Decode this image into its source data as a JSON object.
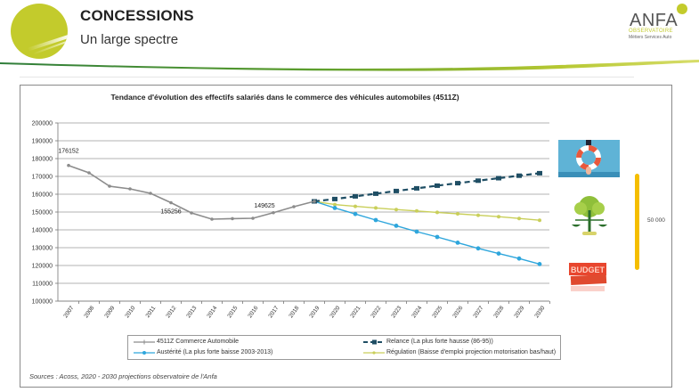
{
  "header": {
    "title": "CONCESSIONS",
    "subtitle": "Un large spectre",
    "brand": "ANFA",
    "brand_line1": "OBSERVATOIRE",
    "brand_line2": "Métiers Services Auto"
  },
  "colors": {
    "accent_green": "#c3cb2c",
    "history": "#8c8c8c",
    "relance": "#1f4e64",
    "austerite": "#2ea6dc",
    "regulation": "#c9cf5a",
    "gold_bar": "#f5be00"
  },
  "side_panel": {
    "range_label": "50 000",
    "icons": [
      "lifebuoy-icon",
      "scales-tree-icon",
      "budget-cut-icon"
    ]
  },
  "legend": {
    "items": [
      {
        "key": "history",
        "label": "4511Z Commerce Automobile"
      },
      {
        "key": "relance",
        "label": "Relance (La plus forte hausse (86-95))"
      },
      {
        "key": "austerite",
        "label": "Austérité (La plus forte baisse 2003-2013)"
      },
      {
        "key": "regulation",
        "label": "Régulation (Baisse d'emploi projection motorisation bas/haut)"
      }
    ]
  },
  "source": "Sources : Acoss,  2020 - 2030 projections observatoire de l'Anfa",
  "chart_data": {
    "type": "line",
    "title": "Tendance d'évolution des effectifs salariés dans le commerce des véhicules automobiles (4511Z)",
    "xlabel": "",
    "ylabel": "",
    "ylim": [
      100000,
      200000
    ],
    "yticks": [
      "200000",
      "190000",
      "180000",
      "170000",
      "160000",
      "150000",
      "140000",
      "130000",
      "120000",
      "110000",
      "100000"
    ],
    "grid": true,
    "legend_position": "bottom",
    "x": [
      "2007",
      "2008",
      "2009",
      "2010",
      "2011",
      "2012",
      "2013",
      "2014",
      "2015",
      "2016",
      "2017",
      "2018",
      "2019",
      "2020",
      "2021",
      "2022",
      "2023",
      "2024",
      "2025",
      "2026",
      "2027",
      "2028",
      "2029",
      "2030"
    ],
    "series": [
      {
        "name": "4511Z Commerce Automobile",
        "key": "history",
        "start_index": 0,
        "values": [
          176152,
          172000,
          164500,
          163000,
          160500,
          155256,
          149500,
          146000,
          146300,
          146500,
          149625,
          153000,
          156000
        ]
      },
      {
        "name": "Relance (La plus forte hausse (86-95))",
        "key": "relance",
        "start_index": 12,
        "values": [
          156000,
          157300,
          158800,
          160300,
          161800,
          163300,
          164800,
          166200,
          167600,
          169000,
          170400,
          171800
        ]
      },
      {
        "name": "Austérité (La plus forte baisse 2003-2013)",
        "key": "austerite",
        "start_index": 12,
        "values": [
          156000,
          152300,
          148900,
          145500,
          142300,
          139000,
          136000,
          132800,
          129600,
          126700,
          123900,
          120800
        ]
      },
      {
        "name": "Régulation (Baisse d'emploi projection motorisation bas/haut)",
        "key": "regulation",
        "start_index": 12,
        "values": [
          156000,
          154200,
          153200,
          152300,
          151400,
          150600,
          149800,
          149000,
          148200,
          147400,
          146400,
          145400
        ]
      }
    ],
    "annotations": [
      {
        "text": "176152",
        "series": "history",
        "index": 0
      },
      {
        "text": "155256",
        "series": "history",
        "index": 5
      },
      {
        "text": "149625",
        "series": "history",
        "index": 10
      }
    ]
  }
}
